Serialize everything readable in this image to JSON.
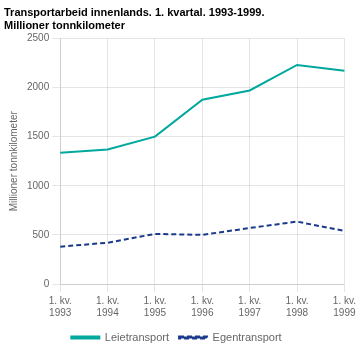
{
  "chart_data": {
    "type": "line",
    "title": "Transportarbeid innenlands. 1. kvartal. 1993-1999.",
    "subtitle": "Millioner tonnkilometer",
    "ylabel": "Millioner tonnkilometer",
    "categories": [
      "1. kv.\n1993",
      "1. kv.\n1994",
      "1. kv.\n1995",
      "1. kv.\n1996",
      "1. kv.\n1997",
      "1. kv.\n1998",
      "1. kv.\n1999"
    ],
    "series": [
      {
        "name": "Leietransport",
        "color": "#00a89d",
        "line_style": "solid",
        "values": [
          1335,
          1370,
          1500,
          1875,
          1970,
          2230,
          2170
        ]
      },
      {
        "name": "Egentransport",
        "color": "#1a3a8c",
        "line_style": "dashed",
        "values": [
          380,
          420,
          510,
          500,
          570,
          635,
          540
        ]
      }
    ],
    "ylim": [
      0,
      2500
    ],
    "yticks": [
      0,
      500,
      1000,
      1500,
      2000,
      2500
    ],
    "grid": true,
    "legend": "bottom"
  }
}
